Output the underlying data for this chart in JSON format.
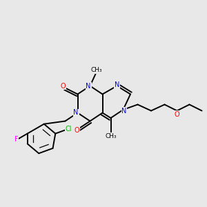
{
  "bg_color": "#e8e8e8",
  "atom_colors": {
    "C": "#000000",
    "N": "#0000ff",
    "O": "#ff0000",
    "Cl": "#00bb00",
    "F": "#ff00ff"
  },
  "figsize": [
    3.0,
    3.0
  ],
  "dpi": 100
}
